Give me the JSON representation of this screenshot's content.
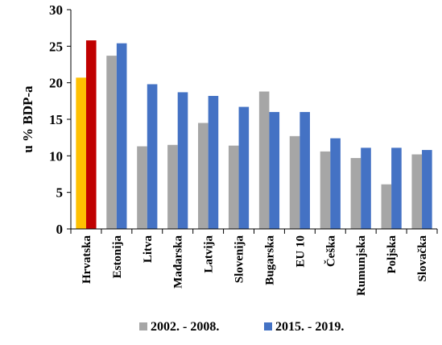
{
  "chart_data": {
    "type": "bar",
    "title": "",
    "xlabel": "",
    "ylabel": "u % BDP-a",
    "ylim": [
      0,
      30
    ],
    "yticks": [
      0,
      5,
      10,
      15,
      20,
      25,
      30
    ],
    "grid": false,
    "legend_position": "bottom",
    "categories": [
      "Hrvatska",
      "Estonija",
      "Litva",
      "Mađarska",
      "Latvija",
      "Slovenija",
      "Bugarska",
      "EU 10",
      "Češka",
      "Rumunjska",
      "Poljska",
      "Slovačka"
    ],
    "series": [
      {
        "name": "2002. - 2008.",
        "color": "#a6a6a6",
        "highlight_color": "#ffc000",
        "values": [
          20.7,
          23.7,
          11.3,
          11.5,
          14.5,
          11.4,
          18.8,
          12.7,
          10.6,
          9.7,
          6.1,
          10.2
        ]
      },
      {
        "name": "2015. - 2019.",
        "color": "#4472c4",
        "highlight_color": "#c00000",
        "values": [
          25.8,
          25.4,
          19.8,
          18.7,
          18.2,
          16.7,
          16.0,
          16.0,
          12.4,
          11.1,
          11.1,
          10.8
        ]
      }
    ],
    "highlight_category": "Hrvatska"
  }
}
